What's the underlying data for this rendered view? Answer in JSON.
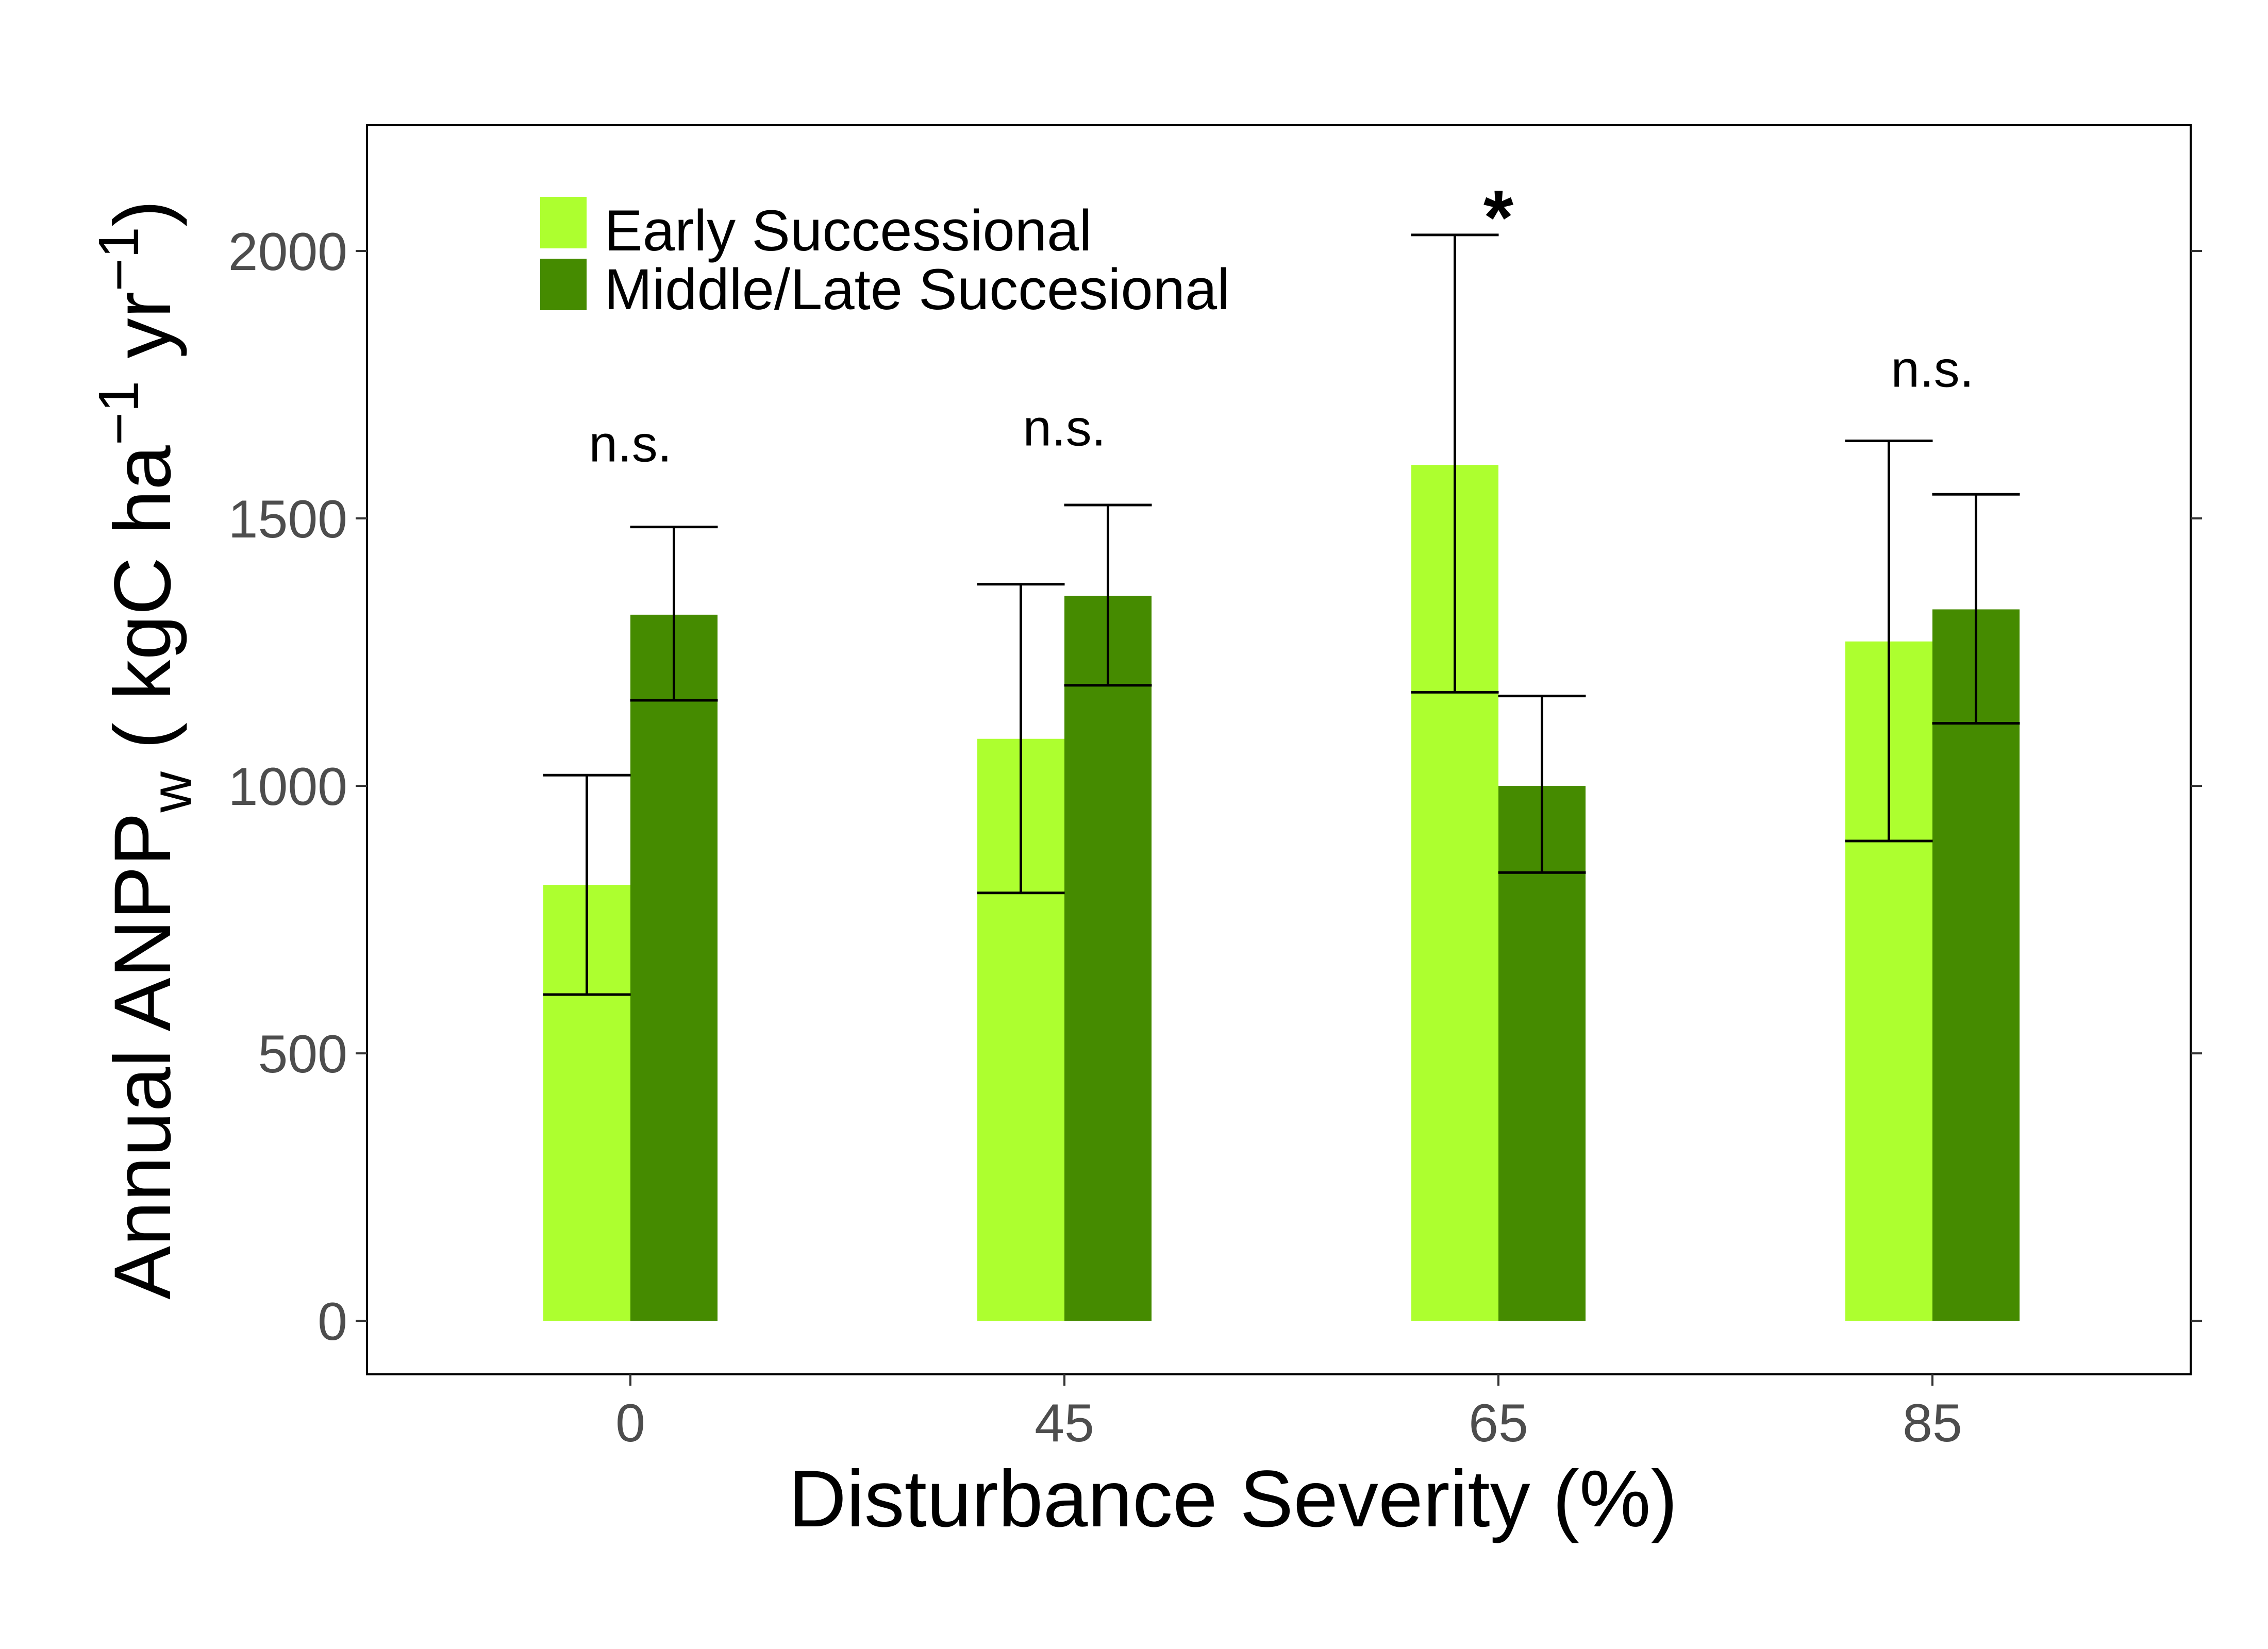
{
  "chart_data": {
    "type": "bar",
    "xlabel": "Disturbance Severity (%)",
    "ylabel": {
      "main": "Annual ANPP",
      "sub": "w",
      "unit_open": " ( kgC ha",
      "exp1": "−1",
      "unit_mid": " yr",
      "exp2": "−1",
      "unit_close": ")"
    },
    "categories": [
      "0",
      "45",
      "65",
      "85"
    ],
    "ylim": [
      -100,
      2235
    ],
    "yticks": [
      0,
      500,
      1000,
      1500,
      2000
    ],
    "legend_position": "top-left",
    "grid": false,
    "series": [
      {
        "name": "Early Successional",
        "color": "#adff2f",
        "values": [
          815,
          1088,
          1600,
          1270
        ],
        "err_low": [
          610,
          800,
          1175,
          897
        ],
        "err_high": [
          1020,
          1377,
          2030,
          1645
        ]
      },
      {
        "name": "Middle/Late Succesional",
        "color": "#458b00",
        "values": [
          1320,
          1355,
          1000,
          1330
        ],
        "err_low": [
          1160,
          1188,
          838,
          1117
        ],
        "err_high": [
          1484,
          1525,
          1168,
          1545
        ]
      }
    ],
    "annotations": [
      {
        "category": "0",
        "text": "n.s.",
        "y": 1640
      },
      {
        "category": "45",
        "text": "n.s.",
        "y": 1670
      },
      {
        "category": "65",
        "text": "*",
        "y": 2090
      },
      {
        "category": "85",
        "text": "n.s.",
        "y": 1780
      }
    ]
  }
}
